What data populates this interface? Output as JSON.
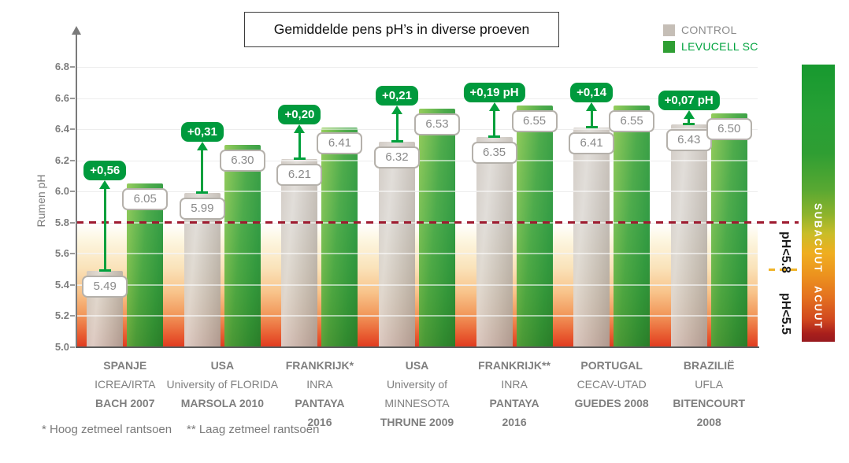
{
  "title_box": {
    "text": "Gemiddelde pens pH’s in diverse proeven"
  },
  "legend": {
    "items": [
      {
        "label": "CONTROL",
        "swatch_color": "#c5beb6",
        "label_color": "#8c8c8c"
      },
      {
        "label": "LEVUCELL SC",
        "swatch_color": "#2f9e33",
        "label_color": "#00a33e"
      }
    ]
  },
  "chart_data": {
    "type": "bar",
    "title": "Gemiddelde pens pH’s in diverse proeven",
    "xlabel": "",
    "ylabel": "Rumen pH",
    "ylim": [
      5.0,
      6.8
    ],
    "ytick_step": 0.2,
    "grid": true,
    "legend_position": "top-right",
    "categories": [
      {
        "lines": [
          {
            "text": "SPANJE",
            "bold": true
          },
          {
            "text": "ICREA/IRTA",
            "bold": false
          },
          {
            "text": "BACH 2007",
            "bold": true
          }
        ]
      },
      {
        "lines": [
          {
            "text": "USA",
            "bold": true
          },
          {
            "text": "University of FLORIDA",
            "bold": false
          },
          {
            "text": "MARSOLA 2010",
            "bold": true
          }
        ]
      },
      {
        "lines": [
          {
            "text": "FRANKRIJK*",
            "bold": true
          },
          {
            "text": "INRA",
            "bold": false
          },
          {
            "text": "PANTAYA",
            "bold": true
          },
          {
            "text": "2016",
            "bold": true
          }
        ]
      },
      {
        "lines": [
          {
            "text": "USA",
            "bold": true
          },
          {
            "text": "University of",
            "bold": false
          },
          {
            "text": "MINNESOTA",
            "bold": false
          },
          {
            "text": "THRUNE 2009",
            "bold": true
          }
        ]
      },
      {
        "lines": [
          {
            "text": "FRANKRIJK**",
            "bold": true
          },
          {
            "text": "INRA",
            "bold": false
          },
          {
            "text": "PANTAYA",
            "bold": true
          },
          {
            "text": "2016",
            "bold": true
          }
        ]
      },
      {
        "lines": [
          {
            "text": "PORTUGAL",
            "bold": true
          },
          {
            "text": "CECAV-UTAD",
            "bold": false
          },
          {
            "text": "GUEDES 2008",
            "bold": true
          }
        ]
      },
      {
        "lines": [
          {
            "text": "BRAZILIË",
            "bold": true
          },
          {
            "text": "UFLA",
            "bold": false
          },
          {
            "text": "BITENCOURT",
            "bold": true
          },
          {
            "text": "2008",
            "bold": true
          }
        ]
      }
    ],
    "series": [
      {
        "name": "CONTROL",
        "color": "#c5beb6",
        "values": [
          5.49,
          5.99,
          6.21,
          6.32,
          6.35,
          6.41,
          6.43
        ]
      },
      {
        "name": "LEVUCELL SC",
        "color": "#2f9e33",
        "values": [
          6.05,
          6.3,
          6.41,
          6.53,
          6.55,
          6.55,
          6.5
        ]
      }
    ],
    "diff_labels": [
      "+0,56",
      "+0,31",
      "+0,20",
      "+0,21",
      "+0,19 pH",
      "+0,14",
      "+0,07 pH"
    ],
    "thresholds": [
      {
        "value": 5.8,
        "style": "dashed",
        "color": "#9e1b30",
        "side_label": "pH<5.8"
      },
      {
        "value": 5.5,
        "style": "dashed",
        "color": "#f0b429",
        "side_label": "pH<5.5"
      }
    ],
    "risk_zones": [
      {
        "label": "SUBACUUT",
        "color": "#ec921e"
      },
      {
        "label": "ACUUT",
        "color": "#a91f1c"
      }
    ],
    "footnotes": [
      "* Hoog zetmeel rantsoen",
      "** Laag zetmeel rantsoen"
    ]
  }
}
